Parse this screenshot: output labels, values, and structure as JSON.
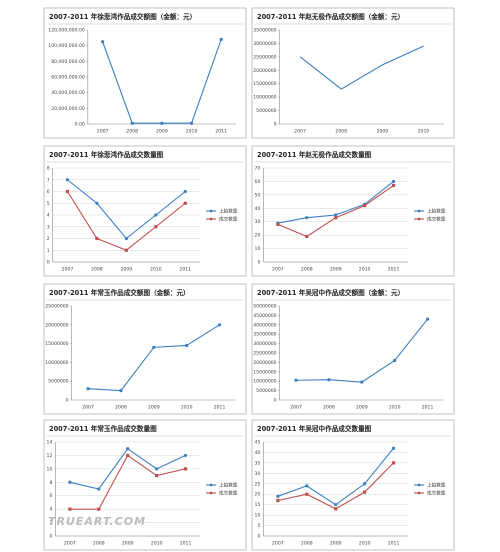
{
  "watermark": "TRUEART.COM",
  "chart_data": [
    {
      "type": "line",
      "title": "2007-2011 年徐悲鸿作品成交额图（金额：元）",
      "categories": [
        "2007",
        "2008",
        "2009",
        "2010",
        "2011"
      ],
      "values": [
        105000000,
        1000000,
        1000000,
        1000000,
        108000000
      ],
      "color": "#3d7fc1",
      "ylim": [
        0,
        120000000
      ],
      "yticks": [
        {
          "value": 0,
          "label": "0.00"
        },
        {
          "value": 20000000,
          "label": "20,000,000.00"
        },
        {
          "value": 40000000,
          "label": "40,000,000.00"
        },
        {
          "value": 60000000,
          "label": "60,000,000.00"
        },
        {
          "value": 80000000,
          "label": "80,000,000.00"
        },
        {
          "value": 100000000,
          "label": "100,000,000.00"
        },
        {
          "value": 120000000,
          "label": "120,000,000.00"
        }
      ],
      "grid": false
    },
    {
      "type": "line",
      "title": "2007-2011 年赵无极作品成交额图（金额：元）",
      "categories": [
        "2007",
        "2008",
        "2009",
        "2010"
      ],
      "values": [
        25000000,
        13000000,
        22000000,
        29000000
      ],
      "color": "#3d7fc1",
      "ylim": [
        0,
        35000000
      ],
      "yticks": [
        0,
        5000000,
        10000000,
        15000000,
        20000000,
        25000000,
        30000000,
        35000000
      ],
      "grid": false
    },
    {
      "type": "line",
      "title": "2007-2011 年徐悲鸿作品成交数量图",
      "categories": [
        "2007",
        "2008",
        "2009",
        "2010",
        "2011"
      ],
      "series": [
        {
          "name": "上拍数量",
          "color": "#3d7fc1",
          "values": [
            7,
            5,
            2,
            4,
            6
          ]
        },
        {
          "name": "成交数量",
          "color": "#c0504d",
          "values": [
            6,
            2,
            1,
            3,
            5
          ]
        }
      ],
      "ylim": [
        0,
        8
      ],
      "yticks": [
        0,
        1,
        2,
        3,
        4,
        5,
        6,
        7,
        8
      ],
      "grid": true,
      "legend": "right"
    },
    {
      "type": "line",
      "title": "2007-2011 年赵无极作品成交数量图",
      "categories": [
        "2007",
        "2008",
        "2009",
        "2010",
        "2011"
      ],
      "series": [
        {
          "name": "上拍数量",
          "color": "#3d7fc1",
          "values": [
            29,
            33,
            35,
            43,
            60
          ]
        },
        {
          "name": "成交数量",
          "color": "#c0504d",
          "values": [
            28,
            19,
            33,
            42,
            57
          ]
        }
      ],
      "ylim": [
        0,
        70
      ],
      "yticks": [
        0,
        10,
        20,
        30,
        40,
        50,
        60,
        70
      ],
      "grid": true,
      "legend": "right"
    },
    {
      "type": "line",
      "title": "2007-2011 年常玉作品成交额图（金额：元）",
      "categories": [
        "2007",
        "2008",
        "2009",
        "2010",
        "2011"
      ],
      "values": [
        3000000,
        2500000,
        14000000,
        14500000,
        20000000
      ],
      "color": "#3d7fc1",
      "ylim": [
        0,
        25000000
      ],
      "yticks": [
        0,
        5000000,
        10000000,
        15000000,
        20000000,
        25000000
      ],
      "grid": false
    },
    {
      "type": "line",
      "title": "2007-2011 年吴冠中作品成交额图（金额：元）",
      "categories": [
        "2007",
        "2008",
        "2009",
        "2010",
        "2011"
      ],
      "values": [
        10500000,
        10800000,
        9500000,
        21000000,
        43000000
      ],
      "color": "#3d7fc1",
      "ylim": [
        0,
        50000000
      ],
      "yticks": [
        0,
        5000000,
        10000000,
        15000000,
        20000000,
        25000000,
        30000000,
        35000000,
        40000000,
        45000000,
        50000000
      ],
      "grid": false
    },
    {
      "type": "line",
      "title": "2007-2011 年常玉作品成交数量图",
      "categories": [
        "2007",
        "2008",
        "2009",
        "2010",
        "2011"
      ],
      "series": [
        {
          "name": "上拍数量",
          "color": "#3d7fc1",
          "values": [
            8,
            7,
            13,
            10,
            12
          ]
        },
        {
          "name": "成交数量",
          "color": "#c0504d",
          "values": [
            4,
            4,
            12,
            9,
            10
          ]
        }
      ],
      "ylim": [
        0,
        14
      ],
      "yticks": [
        0,
        2,
        4,
        6,
        8,
        10,
        12,
        14
      ],
      "grid": true,
      "legend": "right"
    },
    {
      "type": "line",
      "title": "2007-2011 年吴冠中作品成交数量图",
      "categories": [
        "2007",
        "2008",
        "2009",
        "2010",
        "2011"
      ],
      "series": [
        {
          "name": "上拍数量",
          "color": "#3d7fc1",
          "values": [
            19,
            24,
            15,
            25,
            42
          ]
        },
        {
          "name": "成交数量",
          "color": "#c0504d",
          "values": [
            17,
            20,
            13,
            21,
            35
          ]
        }
      ],
      "ylim": [
        0,
        45
      ],
      "yticks": [
        0,
        5,
        10,
        15,
        20,
        25,
        30,
        35,
        40,
        45
      ],
      "grid": true,
      "legend": "right"
    }
  ]
}
